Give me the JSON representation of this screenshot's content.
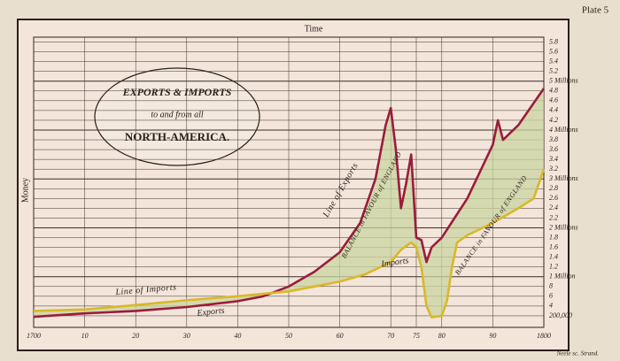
{
  "chart_data": {
    "type": "line",
    "title_lines": [
      "EXPORTS & IMPORTS",
      "to and from all",
      "NORTH-AMERICA."
    ],
    "plate": "Plate 5",
    "xlabel": "Time",
    "ylabel": "Money",
    "engraver": "Neele sc. Strand.",
    "series": [
      {
        "name": "Exports",
        "color": "#9b1c3c",
        "x": [
          1700,
          1710,
          1720,
          1730,
          1740,
          1745,
          1750,
          1755,
          1760,
          1764,
          1767,
          1769,
          1770,
          1771,
          1772,
          1773,
          1774,
          1775,
          1776,
          1777,
          1778,
          1780,
          1785,
          1790,
          1791,
          1792,
          1795,
          1800
        ],
        "values": [
          0.18,
          0.25,
          0.3,
          0.38,
          0.5,
          0.6,
          0.8,
          1.1,
          1.5,
          2.1,
          3.0,
          4.1,
          4.45,
          3.6,
          2.4,
          2.9,
          3.5,
          1.8,
          1.75,
          1.3,
          1.6,
          1.8,
          2.6,
          3.7,
          4.2,
          3.8,
          4.1,
          4.85
        ]
      },
      {
        "name": "Imports",
        "color": "#d9b82a",
        "x": [
          1700,
          1710,
          1720,
          1730,
          1740,
          1750,
          1755,
          1760,
          1765,
          1770,
          1772,
          1774,
          1775,
          1776,
          1777,
          1778,
          1780,
          1781,
          1782,
          1783,
          1785,
          1790,
          1795,
          1798,
          1800
        ],
        "values": [
          0.3,
          0.33,
          0.42,
          0.52,
          0.6,
          0.7,
          0.8,
          0.9,
          1.05,
          1.3,
          1.55,
          1.7,
          1.6,
          1.2,
          0.4,
          0.17,
          0.2,
          0.5,
          1.2,
          1.7,
          1.85,
          2.1,
          2.4,
          2.6,
          3.2
        ]
      }
    ],
    "annotations": [
      "Line of Exports",
      "BALANCE in FAVOUR of ENGLAND",
      "Imports",
      "Line of Imports",
      "Exports",
      "BALANCE in FAVOUR of ENGLAND"
    ],
    "area_color": "#c9d4a0",
    "xlim": [
      1700,
      1800
    ],
    "xticks": [
      1700,
      {
        "value": 1710,
        "label": "10"
      },
      {
        "value": 1720,
        "label": "20"
      },
      {
        "value": 1730,
        "label": "30"
      },
      {
        "value": 1740,
        "label": "40"
      },
      {
        "value": 1750,
        "label": "50"
      },
      {
        "value": 1760,
        "label": "60"
      },
      {
        "value": 1770,
        "label": "70"
      },
      {
        "value": 1775,
        "label": "75"
      },
      {
        "value": 1780,
        "label": "80"
      },
      {
        "value": 1790,
        "label": "90"
      },
      1800
    ],
    "ylim": [
      0,
      5.9
    ],
    "yticks": [
      {
        "value": 0.2,
        "label": "200,000"
      },
      {
        "value": 0.4,
        "label": "4"
      },
      {
        "value": 0.6,
        "label": "6"
      },
      {
        "value": 0.8,
        "label": "8"
      },
      {
        "value": 1,
        "label": "1 Million"
      },
      1.2,
      1.4,
      1.6,
      1.8,
      {
        "value": 2,
        "label": "2 Millions"
      },
      2.2,
      2.4,
      2.6,
      2.8,
      {
        "value": 3,
        "label": "3 Millions"
      },
      3.2,
      3.4,
      3.6,
      3.8,
      {
        "value": 4,
        "label": "4 Millions"
      },
      4.2,
      4.4,
      4.6,
      4.8,
      {
        "value": 5,
        "label": "5 Millions"
      },
      5.2,
      5.4,
      5.6,
      5.8
    ],
    "grid": true
  }
}
